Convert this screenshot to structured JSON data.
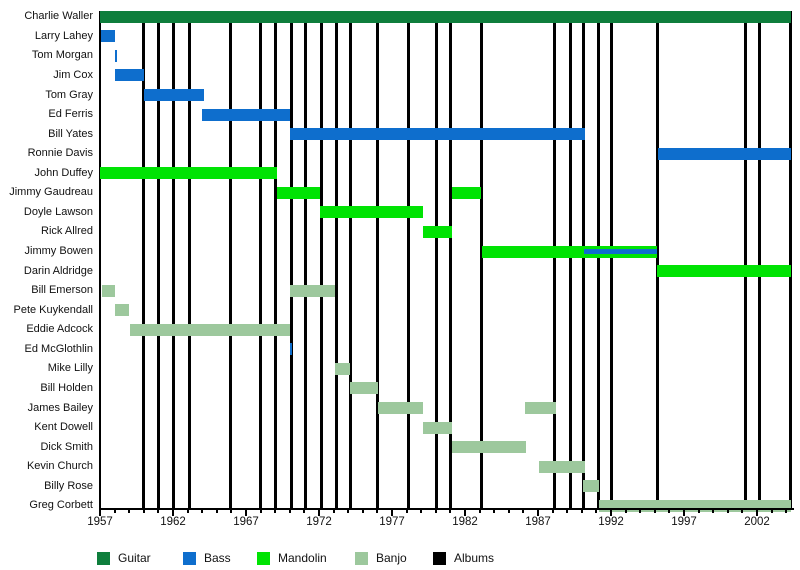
{
  "chart_data": {
    "type": "bar",
    "subtype": "gantt-member-timeline",
    "title": "",
    "xlabel": "",
    "ylabel": "",
    "x_range": [
      1957,
      2004.4
    ],
    "x_major_ticks": [
      1957,
      1962,
      1967,
      1972,
      1977,
      1982,
      1987,
      1992,
      1997,
      2002
    ],
    "x_minor_tick_every": 1,
    "grid": false,
    "legend_position": "bottom",
    "legend": [
      {
        "label": "Guitar",
        "color": "#0E7E3C"
      },
      {
        "label": "Bass",
        "color": "#0E6ECD"
      },
      {
        "label": "Mandolin",
        "color": "#00E303"
      },
      {
        "label": "Banjo",
        "color": "#9DC89D"
      },
      {
        "label": "Albums",
        "color": "#000000"
      }
    ],
    "colors": {
      "Guitar": "#0E7E3C",
      "Bass": "#0E6ECD",
      "Mandolin": "#00E303",
      "Banjo": "#9DC89D",
      "Albums": "#000000"
    },
    "members": [
      {
        "name": "Charlie Waller",
        "stints": [
          {
            "instrument": "Guitar",
            "start": 1957.0,
            "end": 2004.35
          }
        ]
      },
      {
        "name": "Larry Lahey",
        "stints": [
          {
            "instrument": "Bass",
            "start": 1957.1,
            "end": 1958.0
          }
        ]
      },
      {
        "name": "Tom Morgan",
        "stints": [
          {
            "instrument": "Bass",
            "start": 1958.0,
            "end": 1958.15
          }
        ]
      },
      {
        "name": "Jim Cox",
        "stints": [
          {
            "instrument": "Bass",
            "start": 1958.0,
            "end": 1960.0
          }
        ]
      },
      {
        "name": "Tom Gray",
        "stints": [
          {
            "instrument": "Bass",
            "start": 1960.0,
            "end": 1964.1
          }
        ]
      },
      {
        "name": "Ed Ferris",
        "stints": [
          {
            "instrument": "Bass",
            "start": 1964.0,
            "end": 1970.0
          }
        ]
      },
      {
        "name": "Bill Yates",
        "stints": [
          {
            "instrument": "Bass",
            "start": 1970.0,
            "end": 1990.2
          }
        ]
      },
      {
        "name": "Ronnie Davis",
        "stints": [
          {
            "instrument": "Bass",
            "start": 1995.2,
            "end": 2004.3
          }
        ]
      },
      {
        "name": "John Duffey",
        "stints": [
          {
            "instrument": "Mandolin",
            "start": 1957.0,
            "end": 1969.1
          }
        ]
      },
      {
        "name": "Jimmy Gaudreau",
        "stints": [
          {
            "instrument": "Mandolin",
            "start": 1969.1,
            "end": 1972.1
          },
          {
            "instrument": "Mandolin",
            "start": 1981.1,
            "end": 1983.1
          }
        ]
      },
      {
        "name": "Doyle Lawson",
        "stints": [
          {
            "instrument": "Mandolin",
            "start": 1972.1,
            "end": 1979.1
          }
        ]
      },
      {
        "name": "Rick Allred",
        "stints": [
          {
            "instrument": "Mandolin",
            "start": 1979.1,
            "end": 1981.1
          }
        ]
      },
      {
        "name": "Jimmy Bowen",
        "stints": [
          {
            "instrument": "Mandolin",
            "start": 1983.15,
            "end": 1995.15
          },
          {
            "instrument": "Bass",
            "start": 1990.15,
            "end": 1995.15,
            "overlay": true
          }
        ]
      },
      {
        "name": "Darin Aldridge",
        "stints": [
          {
            "instrument": "Mandolin",
            "start": 1995.15,
            "end": 2004.35
          }
        ]
      },
      {
        "name": "Bill Emerson",
        "stints": [
          {
            "instrument": "Banjo",
            "start": 1957.15,
            "end": 1958.0
          },
          {
            "instrument": "Banjo",
            "start": 1970.0,
            "end": 1973.1
          }
        ]
      },
      {
        "name": "Pete Kuykendall",
        "stints": [
          {
            "instrument": "Banjo",
            "start": 1958.0,
            "end": 1959.0
          }
        ]
      },
      {
        "name": "Eddie Adcock",
        "stints": [
          {
            "instrument": "Banjo",
            "start": 1959.05,
            "end": 1970.0
          }
        ]
      },
      {
        "name": "Ed McGlothlin",
        "stints": [
          {
            "instrument": "Bass",
            "start": 1970.0,
            "end": 1970.17
          }
        ]
      },
      {
        "name": "Mike Lilly",
        "stints": [
          {
            "instrument": "Banjo",
            "start": 1973.1,
            "end": 1974.1
          }
        ]
      },
      {
        "name": "Bill Holden",
        "stints": [
          {
            "instrument": "Banjo",
            "start": 1974.1,
            "end": 1976.05
          }
        ]
      },
      {
        "name": "James Bailey",
        "stints": [
          {
            "instrument": "Banjo",
            "start": 1976.05,
            "end": 1979.1
          },
          {
            "instrument": "Banjo",
            "start": 1986.1,
            "end": 1988.2
          }
        ]
      },
      {
        "name": "Kent Dowell",
        "stints": [
          {
            "instrument": "Banjo",
            "start": 1979.1,
            "end": 1981.1
          }
        ]
      },
      {
        "name": "Dick Smith",
        "stints": [
          {
            "instrument": "Banjo",
            "start": 1981.1,
            "end": 1986.2
          }
        ]
      },
      {
        "name": "Kevin Church",
        "stints": [
          {
            "instrument": "Banjo",
            "start": 1987.1,
            "end": 1990.2
          }
        ]
      },
      {
        "name": "Billy Rose",
        "stints": [
          {
            "instrument": "Banjo",
            "start": 1990.1,
            "end": 1991.2
          }
        ]
      },
      {
        "name": "Greg Corbett",
        "stints": [
          {
            "instrument": "Banjo",
            "start": 1991.2,
            "end": 2004.35
          }
        ]
      }
    ],
    "album_years": [
      1960.0,
      1961.0,
      1962.05,
      1963.1,
      1965.95,
      1968.0,
      1969.05,
      1970.1,
      1971.1,
      1972.15,
      1973.2,
      1974.15,
      1976.0,
      1978.1,
      1980.05,
      1981.0,
      1983.15,
      1988.15,
      1989.2,
      1990.15,
      1991.15,
      1992.05,
      1995.2,
      2001.2,
      2002.2,
      2004.3
    ]
  }
}
